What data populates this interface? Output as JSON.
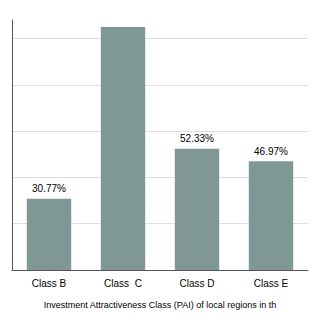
{
  "chart_data": {
    "type": "bar",
    "categories": [
      "Class B",
      "Class  C",
      "Class D",
      "Class E"
    ],
    "values": [
      30.77,
      105.0,
      52.33,
      46.97
    ],
    "value_labels": [
      "30.77%",
      null,
      "52.33%",
      "46.97%"
    ],
    "data_labels": true,
    "color": "#7f9896",
    "xlabel": "Investment Attractiveness Class (PAI) of local regions in th",
    "ylim": [
      0,
      108
    ],
    "yticks": [
      20,
      40,
      60,
      80,
      100
    ],
    "grid": true,
    "tick_labels": "x"
  }
}
